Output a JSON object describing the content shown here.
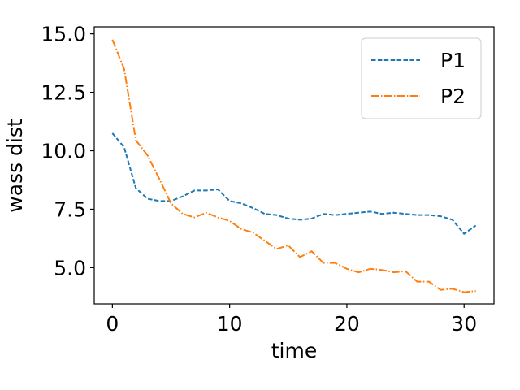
{
  "chart_data": {
    "type": "line",
    "title": "",
    "xlabel": "time",
    "ylabel": "wass dist",
    "xlim": [
      -1.55,
      32.55
    ],
    "ylim": [
      3.45,
      15.3
    ],
    "xticks": [
      0,
      10,
      20,
      30
    ],
    "xtick_labels": [
      "0",
      "10",
      "20",
      "30"
    ],
    "yticks": [
      5.0,
      7.5,
      10.0,
      12.5,
      15.0
    ],
    "ytick_labels": [
      "5.0",
      "7.5",
      "10.0",
      "12.5",
      "15.0"
    ],
    "grid": false,
    "legend_position": "top-right",
    "x": [
      0,
      1,
      2,
      3,
      4,
      5,
      6,
      7,
      8,
      9,
      10,
      11,
      12,
      13,
      14,
      15,
      16,
      17,
      18,
      19,
      20,
      21,
      22,
      23,
      24,
      25,
      26,
      27,
      28,
      29,
      30,
      31
    ],
    "series": [
      {
        "name": "P1",
        "color": "#1f77b4",
        "linestyle": "dashed",
        "values": [
          10.75,
          10.15,
          8.4,
          7.95,
          7.85,
          7.85,
          8.05,
          8.3,
          8.3,
          8.35,
          7.85,
          7.75,
          7.55,
          7.3,
          7.25,
          7.1,
          7.05,
          7.1,
          7.3,
          7.25,
          7.3,
          7.35,
          7.4,
          7.3,
          7.35,
          7.3,
          7.25,
          7.25,
          7.2,
          7.05,
          6.45,
          6.8
        ]
      },
      {
        "name": "P2",
        "color": "#ff7f0e",
        "linestyle": "dashdot",
        "values": [
          14.75,
          13.5,
          10.45,
          9.8,
          8.8,
          7.75,
          7.3,
          7.15,
          7.35,
          7.15,
          7.0,
          6.65,
          6.5,
          6.15,
          5.8,
          5.95,
          5.45,
          5.7,
          5.2,
          5.2,
          4.95,
          4.8,
          4.95,
          4.9,
          4.8,
          4.85,
          4.4,
          4.4,
          4.05,
          4.1,
          3.95,
          4.0
        ]
      }
    ]
  }
}
